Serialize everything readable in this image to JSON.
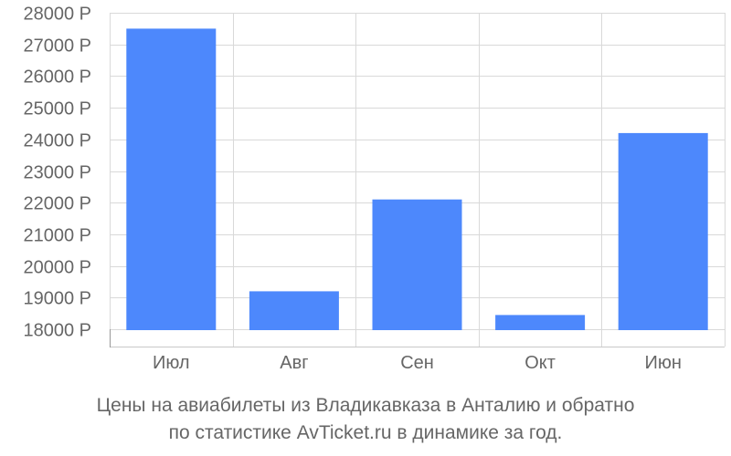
{
  "chart_data": {
    "type": "bar",
    "categories": [
      "Июл",
      "Авг",
      "Сен",
      "Окт",
      "Июн"
    ],
    "values": [
      27500,
      19200,
      22100,
      18450,
      24200
    ],
    "y_ticks": [
      18000,
      19000,
      20000,
      21000,
      22000,
      23000,
      24000,
      25000,
      26000,
      27000,
      28000
    ],
    "y_tick_labels": [
      "18000 Р",
      "19000 Р",
      "20000 Р",
      "21000 Р",
      "22000 Р",
      "23000 Р",
      "24000 Р",
      "25000 Р",
      "26000 Р",
      "27000 Р",
      "28000 Р"
    ],
    "ylim": [
      17500,
      28000
    ],
    "grid": true,
    "bar_color": "#4d88fc",
    "grid_color": "#d9d9d9",
    "label_color": "#666666"
  },
  "caption": {
    "line1": "Цены на авиабилеты из Владикавказа в Анталию и обратно",
    "line2": "по статистике AvTicket.ru в динамике за год."
  }
}
